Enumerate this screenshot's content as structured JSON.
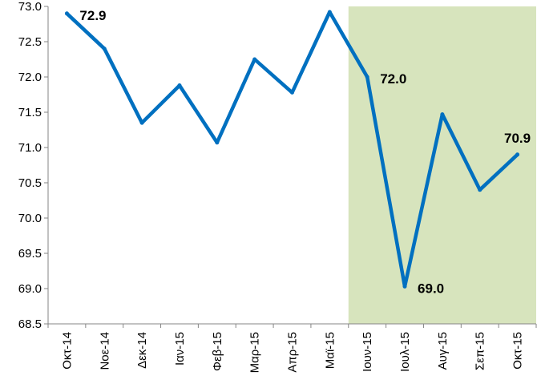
{
  "chart_data": {
    "type": "line",
    "title": "",
    "xlabel": "",
    "ylabel": "",
    "categories": [
      "Οκτ-14",
      "Νοε-14",
      "Δεκ-14",
      "Ιαν-15",
      "Φεβ-15",
      "Μαρ-15",
      "Απρ-15",
      "Μαϊ-15",
      "Ιουν-15",
      "Ιουλ-15",
      "Αυγ-15",
      "Σεπ-15",
      "Οκτ-15"
    ],
    "series": [
      {
        "values": [
          72.9,
          72.4,
          71.35,
          71.88,
          71.07,
          72.25,
          71.78,
          72.92,
          72.0,
          69.03,
          71.47,
          70.4,
          70.9
        ],
        "color": "#0070c0"
      }
    ],
    "ylim": [
      68.5,
      73.0
    ],
    "yticks": [
      "68.5",
      "69.0",
      "69.5",
      "70.0",
      "70.5",
      "71.0",
      "71.5",
      "72.0",
      "72.5",
      "73.0"
    ],
    "grid": false,
    "legend": "none",
    "highlight_region": {
      "from_category": "Ιουν-15",
      "to_category": "Οκτ-15",
      "color": "#d7e4bd"
    },
    "data_labels": [
      {
        "index": 0,
        "text": "72.9"
      },
      {
        "index": 8,
        "text": "72.0"
      },
      {
        "index": 9,
        "text": "69.0"
      },
      {
        "index": 12,
        "text": "70.9"
      }
    ],
    "axis_color": "#868686"
  }
}
